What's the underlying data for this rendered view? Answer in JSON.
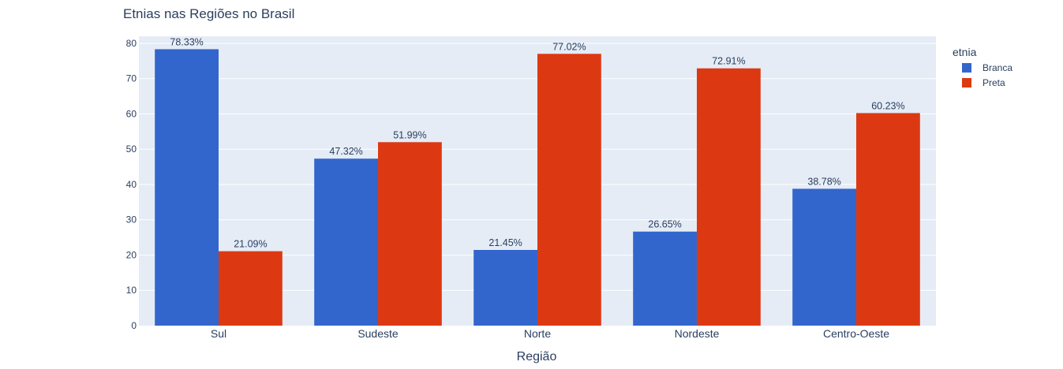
{
  "chart_data": {
    "type": "bar",
    "title": "Etnias nas Regiões no Brasil",
    "xlabel": "Região",
    "ylabel": "",
    "categories": [
      "Sul",
      "Sudeste",
      "Norte",
      "Nordeste",
      "Centro-Oeste"
    ],
    "series": [
      {
        "name": "Branca",
        "color": "#3366cc",
        "values": [
          78.33,
          47.32,
          21.45,
          26.65,
          38.78
        ],
        "labels": [
          "78.33%",
          "47.32%",
          "21.45%",
          "26.65%",
          "38.78%"
        ]
      },
      {
        "name": "Preta",
        "color": "#dc3912",
        "values": [
          21.09,
          51.99,
          77.02,
          72.91,
          60.23
        ],
        "labels": [
          "21.09%",
          "51.99%",
          "77.02%",
          "72.91%",
          "60.23%"
        ]
      }
    ],
    "ylim": [
      0,
      82
    ],
    "yticks": [
      "0",
      "10",
      "20",
      "30",
      "40",
      "50",
      "60",
      "70",
      "80"
    ],
    "legend": {
      "title": "etnia",
      "position": "top-right"
    },
    "grid": true,
    "plot_bgcolor": "#e5ecf6"
  }
}
